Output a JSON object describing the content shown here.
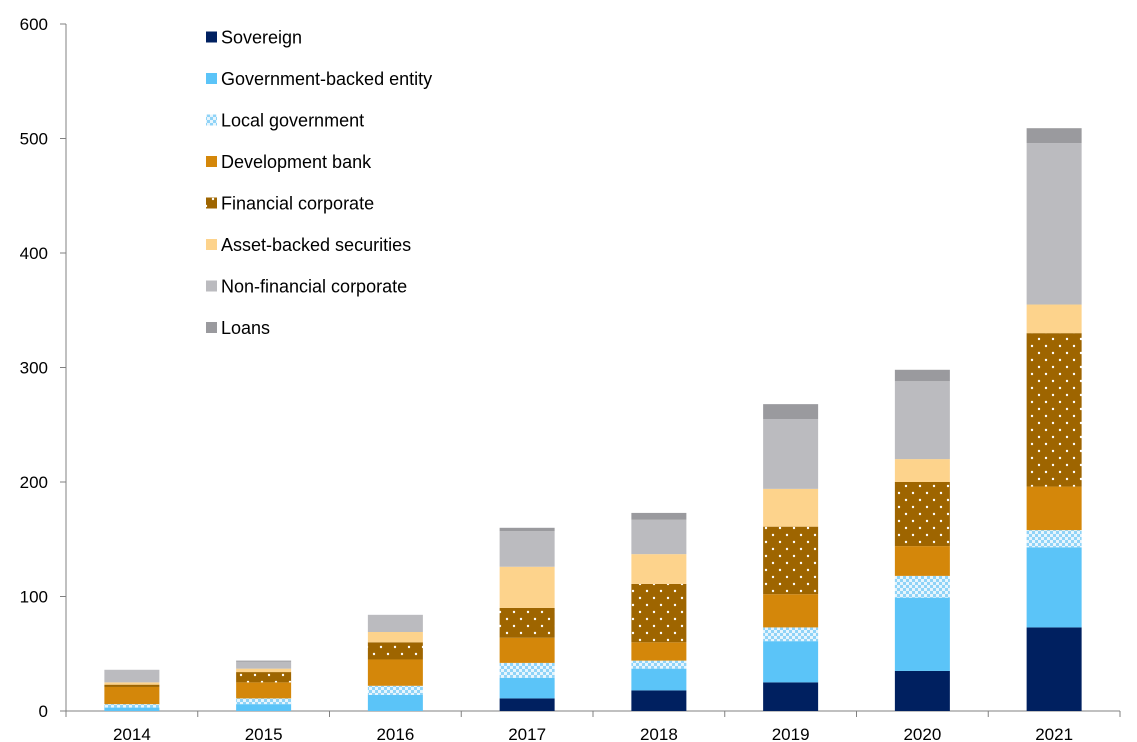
{
  "chart_data": {
    "type": "bar",
    "stacked": true,
    "categories": [
      "2014",
      "2015",
      "2016",
      "2017",
      "2018",
      "2019",
      "2020",
      "2021"
    ],
    "ylim": [
      0,
      600
    ],
    "yticks": [
      "0",
      "100",
      "200",
      "300",
      "400",
      "500",
      "600"
    ],
    "title": "",
    "xlabel": "",
    "ylabel": "",
    "legend_position": "top-left",
    "grid": false,
    "series": [
      {
        "name": "Sovereign",
        "color": "#002060",
        "pattern": "solid",
        "values": [
          0,
          0,
          0,
          11,
          18,
          25,
          35,
          73
        ]
      },
      {
        "name": "Government-backed entity",
        "color": "#5BC4F8",
        "pattern": "solid",
        "values": [
          3,
          6,
          14,
          18,
          19,
          36,
          64,
          70
        ]
      },
      {
        "name": "Local government",
        "color": "#C5E7F8",
        "pattern": "dots",
        "values": [
          3,
          5,
          8,
          13,
          7,
          12,
          19,
          15
        ]
      },
      {
        "name": "Development bank",
        "color": "#D4870A",
        "pattern": "solid",
        "values": [
          15,
          14,
          23,
          22,
          16,
          29,
          26,
          38
        ]
      },
      {
        "name": "Financial corporate",
        "color": "#9E6500",
        "pattern": "dots",
        "values": [
          2,
          9,
          15,
          26,
          51,
          59,
          56,
          134
        ]
      },
      {
        "name": "Asset-backed securities",
        "color": "#FDD38C",
        "pattern": "solid",
        "values": [
          2,
          3,
          9,
          36,
          26,
          33,
          20,
          25
        ]
      },
      {
        "name": "Non-financial corporate",
        "color": "#BBBBBF",
        "pattern": "solid",
        "values": [
          11,
          6,
          15,
          31,
          30,
          61,
          68,
          141
        ]
      },
      {
        "name": "Loans",
        "color": "#9A9A9E",
        "pattern": "solid",
        "values": [
          0,
          1,
          0,
          3,
          6,
          13,
          10,
          13
        ]
      }
    ]
  }
}
